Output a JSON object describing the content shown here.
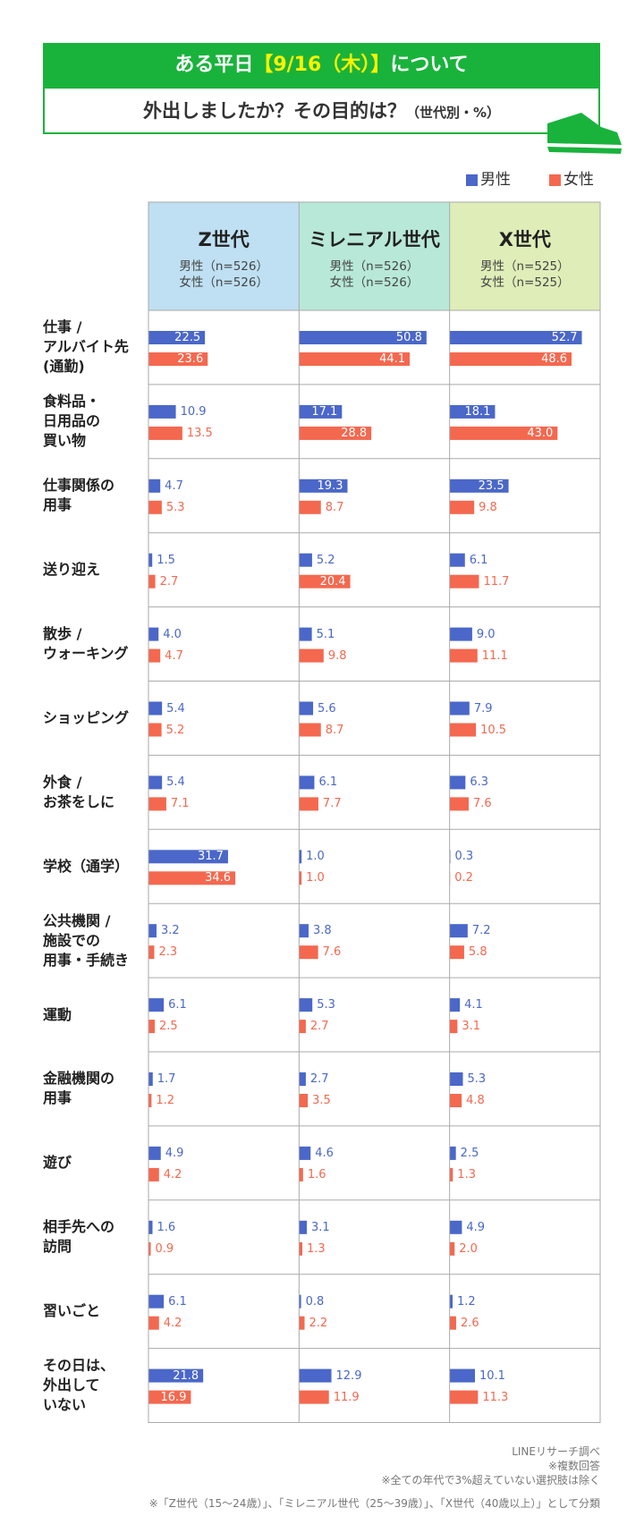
{
  "chart_data": {
    "type": "bar",
    "title": [
      "ある平日",
      "【9/16（木）】",
      "について"
    ],
    "subtitle": "外出しましたか？その目的は？",
    "subtitle_note": "（世代別・%）",
    "series": [
      {
        "name": "男性",
        "color": "#4a67c9"
      },
      {
        "name": "女性",
        "color": "#f4684f"
      }
    ],
    "xlim": [
      0,
      60
    ],
    "categories": [
      "仕事 /\nアルバイト先\n(通勤)",
      "食料品・\n日用品の\n買い物",
      "仕事関係の\n用事",
      "送り迎え",
      "散歩 /\nウォーキング",
      "ショッピング",
      "外食 /\nお茶をしに",
      "学校（通学）",
      "公共機関 /\n施設での\n用事・手続き",
      "運動",
      "金融機関の\n用事",
      "遊び",
      "相手先への\n訪問",
      "習いごと",
      "その日は、\n外出して\nいない"
    ],
    "panels": [
      {
        "name": "Z世代",
        "color": "#bfe0f2",
        "notes": [
          "男性（n=526）",
          "女性（n=526）"
        ],
        "series": [
          {
            "values": [
              22.5,
              10.9,
              4.7,
              1.5,
              4.0,
              5.4,
              5.4,
              31.7,
              3.2,
              6.1,
              1.7,
              4.9,
              1.6,
              6.1,
              21.8
            ],
            "value_labels": [
              "22.5",
              "10.9",
              "4.7",
              "1.5",
              "4.0",
              "5.4",
              "5.4",
              "31.7",
              "3.2",
              "6.1",
              "1.7",
              "4.9",
              "1.6",
              "6.1",
              "21.8"
            ]
          },
          {
            "values": [
              23.6,
              13.5,
              5.3,
              2.7,
              4.7,
              5.2,
              7.1,
              34.6,
              2.3,
              2.5,
              1.2,
              4.2,
              0.9,
              4.2,
              16.9
            ],
            "value_labels": [
              "23.6",
              "13.5",
              "5.3",
              "2.7",
              "4.7",
              "5.2",
              "7.1",
              "34.6",
              "2.3",
              "2.5",
              "1.2",
              "4.2",
              "0.9",
              "4.2",
              "16.9"
            ]
          }
        ]
      },
      {
        "name": "ミレニアル世代",
        "color": "#b8e8d8",
        "notes": [
          "男性（n=526）",
          "女性（n=526）"
        ],
        "series": [
          {
            "values": [
              50.8,
              17.1,
              19.3,
              5.2,
              5.1,
              5.6,
              6.1,
              1.0,
              3.8,
              5.3,
              2.7,
              4.6,
              3.1,
              0.8,
              12.9
            ],
            "value_labels": [
              "50.8",
              "17.1",
              "19.3",
              "5.2",
              "5.1",
              "5.6",
              "6.1",
              "1.0",
              "3.8",
              "5.3",
              "2.7",
              "4.6",
              "3.1",
              "0.8",
              "12.9"
            ]
          },
          {
            "values": [
              44.1,
              28.8,
              8.7,
              20.4,
              9.8,
              8.7,
              7.7,
              1.0,
              7.6,
              2.7,
              3.5,
              1.6,
              1.3,
              2.2,
              11.9
            ],
            "value_labels": [
              "44.1",
              "28.8",
              "8.7",
              "20.4",
              "9.8",
              "8.7",
              "7.7",
              "1.0",
              "7.6",
              "2.7",
              "3.5",
              "1.6",
              "1.3",
              "2.2",
              "11.9"
            ]
          }
        ]
      },
      {
        "name": "X世代",
        "color": "#dfedb8",
        "notes": [
          "男性（n=525）",
          "女性（n=525）"
        ],
        "series": [
          {
            "values": [
              52.7,
              18.1,
              23.5,
              6.1,
              9.0,
              7.9,
              6.3,
              0.3,
              7.2,
              4.1,
              5.3,
              2.5,
              4.9,
              1.2,
              10.1
            ],
            "value_labels": [
              "52.7",
              "18.1",
              "23.5",
              "6.1",
              "9.0",
              "7.9",
              "6.3",
              "0.3",
              "7.2",
              "4.1",
              "5.3",
              "2.5",
              "4.9",
              "1.2",
              "10.1"
            ]
          },
          {
            "values": [
              48.6,
              43.0,
              9.8,
              11.7,
              11.1,
              10.5,
              7.6,
              0.2,
              5.8,
              3.1,
              4.8,
              1.3,
              2.0,
              2.6,
              11.3
            ],
            "value_labels": [
              "48.6",
              "43.0",
              "9.8",
              "11.7",
              "11.1",
              "10.5",
              "7.6",
              "0.2",
              "5.8",
              "3.1",
              "4.8",
              "1.3",
              "2.0",
              "2.6",
              "11.3"
            ]
          }
        ]
      }
    ],
    "footnotes": [
      "LINEリサーチ調べ",
      "※複数回答",
      "※全ての年代で3%超えていない選択肢は除く",
      "※「Z世代（15～24歳）」、「ミレニアル世代（25～39歳）」、「X世代（40歳以上）」として分類"
    ]
  }
}
